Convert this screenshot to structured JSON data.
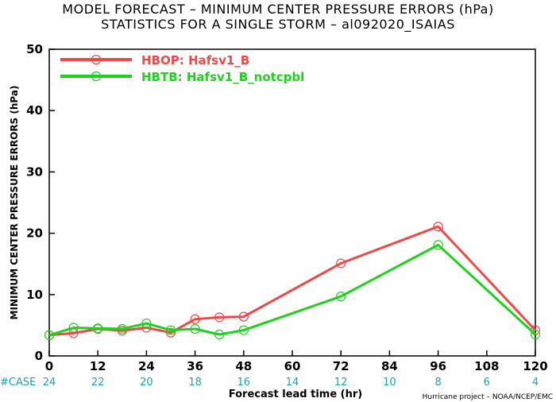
{
  "chart_data": {
    "type": "line",
    "title": "MODEL FORECAST – MINIMUM CENTER PRESSURE ERRORS (hPa)",
    "subtitle": "STATISTICS FOR A SINGLE STORM – al092020_ISAIAS",
    "xlabel": "Forecast lead time (hr)",
    "ylabel": "MINIMUM CENTER PRESSURE ERRORS (hPa)",
    "xlim": [
      0,
      120
    ],
    "ylim": [
      0,
      50
    ],
    "xticks": [
      0,
      12,
      24,
      36,
      48,
      60,
      72,
      84,
      96,
      108,
      120
    ],
    "yticks": [
      0,
      10,
      20,
      30,
      40,
      50
    ],
    "case_label": "#CASE",
    "case_counts": [
      "24",
      "22",
      "20",
      "18",
      "16",
      "14",
      "12",
      "10",
      "8",
      "6",
      "4"
    ],
    "credit": "Hurricane project – NOAA/NCEP/EMC",
    "legend_position": "top-left",
    "series": [
      {
        "name": "HBOP: Hafsv1_B",
        "color": "#f04848",
        "x": [
          0,
          6,
          12,
          18,
          24,
          30,
          36,
          42,
          48,
          72,
          96,
          120
        ],
        "values": [
          3.4,
          3.7,
          4.4,
          4.1,
          4.6,
          3.8,
          6.0,
          6.3,
          6.4,
          15.1,
          21.1,
          4.2
        ]
      },
      {
        "name": "HBTB: Hafsv1_B_notcpbl",
        "color": "#1ed21e",
        "x": [
          0,
          6,
          12,
          18,
          24,
          30,
          36,
          42,
          48,
          72,
          96,
          120
        ],
        "values": [
          3.4,
          4.6,
          4.5,
          4.4,
          5.3,
          4.2,
          4.4,
          3.5,
          4.2,
          9.7,
          18.1,
          3.5
        ]
      }
    ]
  }
}
